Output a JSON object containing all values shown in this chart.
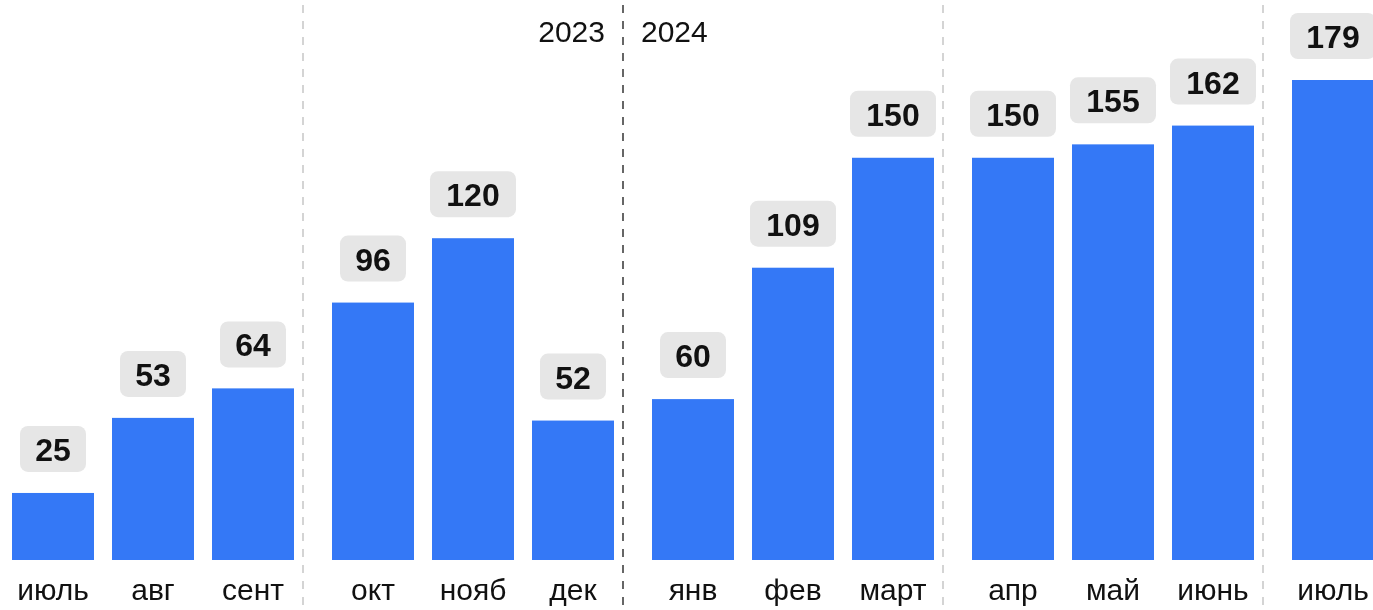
{
  "chart_data": {
    "type": "bar",
    "categories": [
      "июль",
      "авг",
      "сент",
      "окт",
      "нояб",
      "дек",
      "янв",
      "фев",
      "март",
      "апр",
      "май",
      "июнь",
      "июль"
    ],
    "values": [
      25,
      53,
      64,
      96,
      120,
      52,
      60,
      109,
      150,
      150,
      155,
      162,
      179
    ],
    "color": "#3478f6",
    "data_labels": true,
    "annotations": [
      "2023",
      "2024"
    ]
  }
}
